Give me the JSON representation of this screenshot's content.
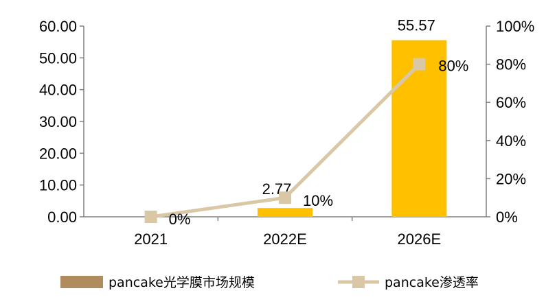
{
  "chart_data": {
    "type": "bar+line",
    "categories": [
      "2021",
      "2022E",
      "2026E"
    ],
    "series": [
      {
        "name": "pancake光学膜市场规模",
        "type": "bar",
        "axis": "left",
        "values": [
          0,
          2.77,
          55.57
        ],
        "labels": [
          "",
          "2.77",
          "55.57"
        ],
        "color": "#FFC000"
      },
      {
        "name": "pancake渗透率",
        "type": "line",
        "axis": "right",
        "values": [
          0,
          10,
          80
        ],
        "labels": [
          "0%",
          "10%",
          "80%"
        ],
        "color": "#D9C7A5"
      }
    ],
    "left_axis": {
      "ylim": [
        0,
        60
      ],
      "ticks": [
        "0.00",
        "10.00",
        "20.00",
        "30.00",
        "40.00",
        "50.00",
        "60.00"
      ]
    },
    "right_axis": {
      "ylim": [
        0,
        100
      ],
      "ticks": [
        "0%",
        "20%",
        "40%",
        "60%",
        "80%",
        "100%"
      ]
    },
    "legend": {
      "position": "bottom",
      "items": [
        {
          "label": "pancake光学膜市场规模",
          "swatch_color": "#B08B5E",
          "kind": "box"
        },
        {
          "label": "pancake渗透率",
          "swatch_color": "#D9C7A5",
          "kind": "line-marker"
        }
      ]
    },
    "grid": false
  }
}
